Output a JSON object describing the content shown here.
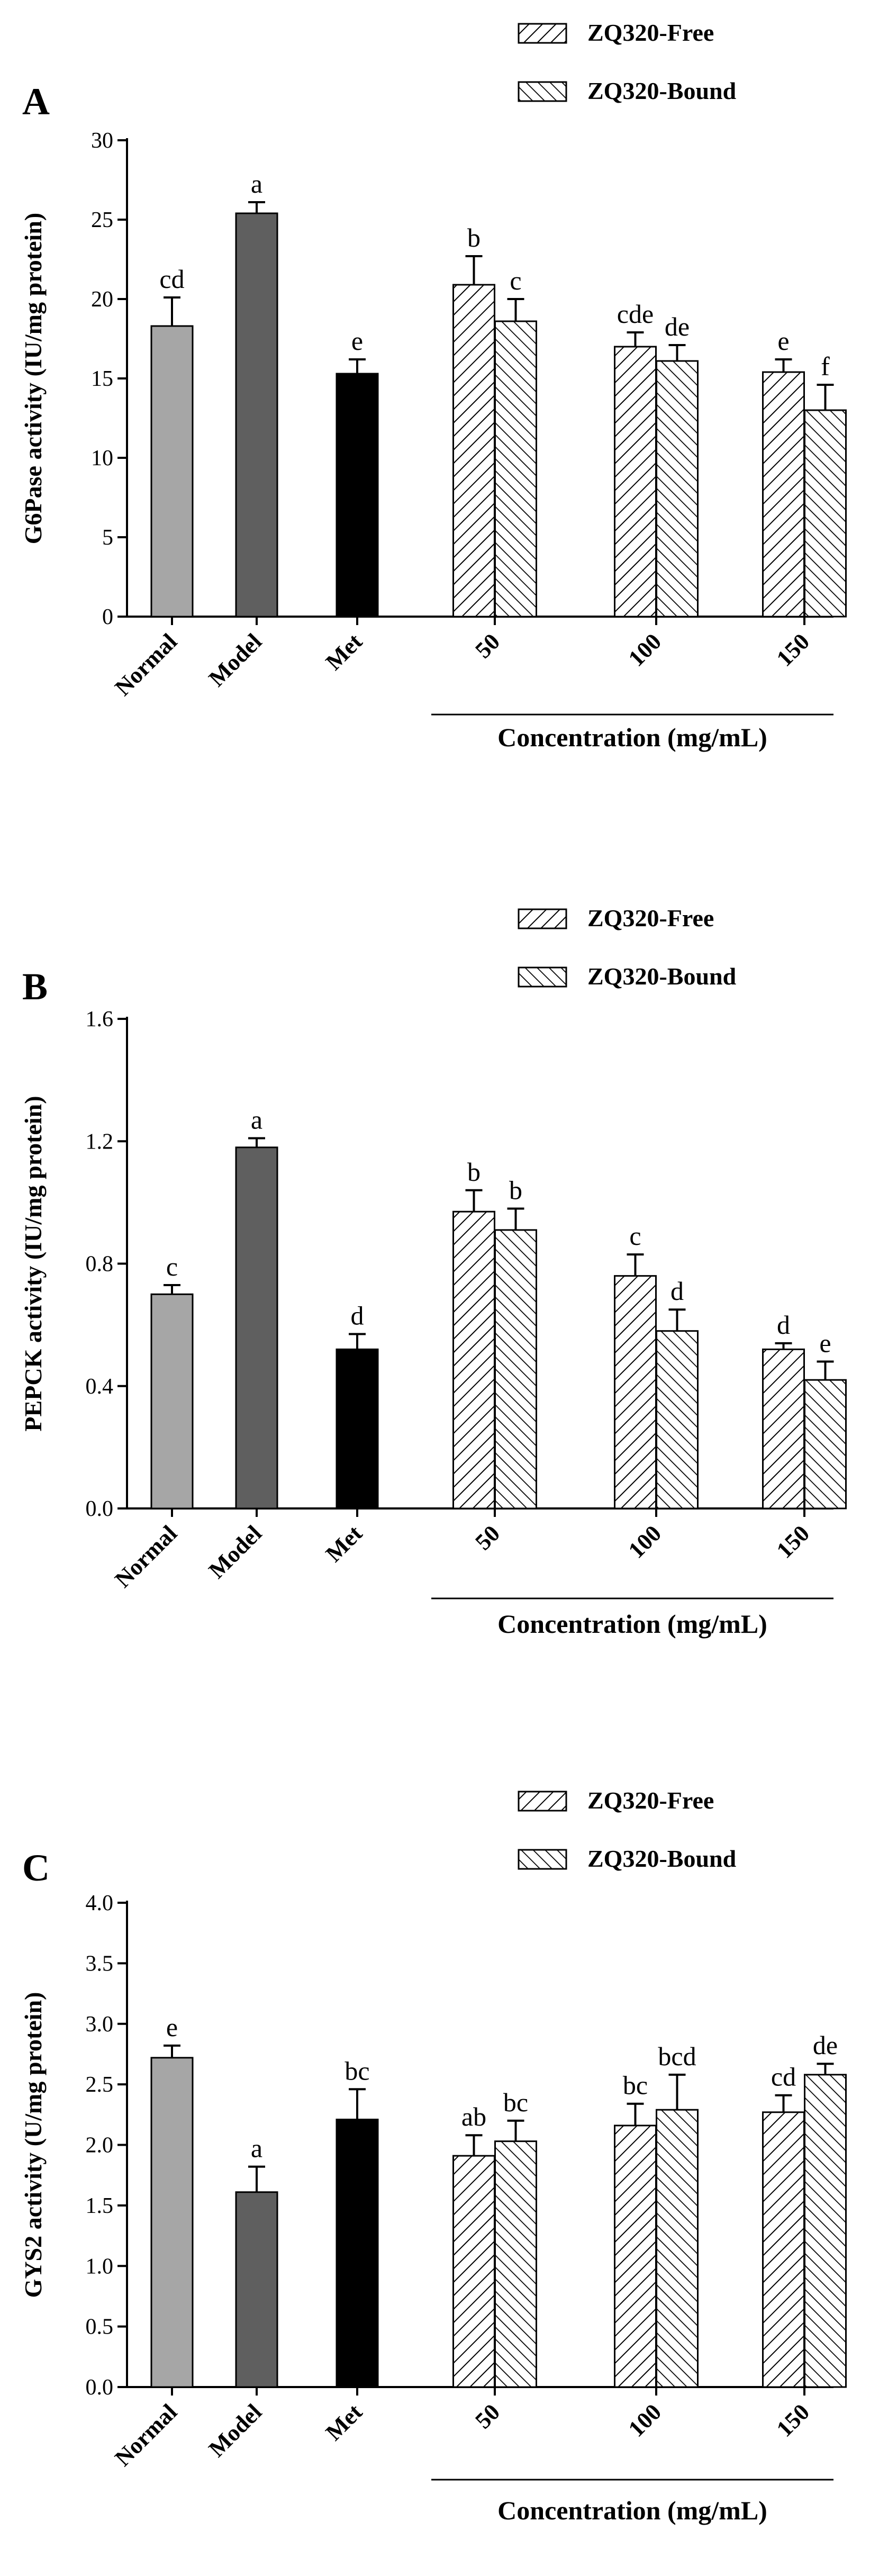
{
  "figure": {
    "legend": {
      "free_label": "ZQ320-Free",
      "bound_label": "ZQ320-Bound"
    }
  },
  "chart_data": [
    {
      "type": "bar",
      "panel_label": "A",
      "ylabel": "G6Pase activity (IU/mg protein)",
      "xlabel": "Concentration (mg/mL)",
      "ylim": [
        0,
        30
      ],
      "yticks": [
        0,
        5,
        10,
        15,
        20,
        25,
        30
      ],
      "ytick_labels": [
        "0",
        "5",
        "10",
        "15",
        "20",
        "25",
        "30"
      ],
      "controls": [
        {
          "category": "Normal",
          "value": 18.3,
          "error": 1.8,
          "letter": "cd",
          "color": "#a6a6a6"
        },
        {
          "category": "Model",
          "value": 25.4,
          "error": 0.7,
          "letter": "a",
          "color": "#5f5f5f"
        },
        {
          "category": "Met",
          "value": 15.3,
          "error": 0.9,
          "letter": "e",
          "color": "#000000"
        }
      ],
      "groups": [
        {
          "category": "50",
          "free": {
            "value": 20.9,
            "error": 1.8,
            "letter": "b"
          },
          "bound": {
            "value": 18.6,
            "error": 1.4,
            "letter": "c"
          }
        },
        {
          "category": "100",
          "free": {
            "value": 17.0,
            "error": 0.9,
            "letter": "cde"
          },
          "bound": {
            "value": 16.1,
            "error": 1.0,
            "letter": "de"
          }
        },
        {
          "category": "150",
          "free": {
            "value": 15.4,
            "error": 0.8,
            "letter": "e"
          },
          "bound": {
            "value": 13.0,
            "error": 1.6,
            "letter": "f"
          }
        }
      ]
    },
    {
      "type": "bar",
      "panel_label": "B",
      "ylabel": "PEPCK activity (IU/mg protein)",
      "xlabel": "Concentration (mg/mL)",
      "ylim": [
        0,
        1.6
      ],
      "yticks": [
        0,
        0.4,
        0.8,
        1.2,
        1.6
      ],
      "ytick_labels": [
        "0.0",
        "0.4",
        "0.8",
        "1.2",
        "1.6"
      ],
      "controls": [
        {
          "category": "Normal",
          "value": 0.7,
          "error": 0.03,
          "letter": "c",
          "color": "#a6a6a6"
        },
        {
          "category": "Model",
          "value": 1.18,
          "error": 0.03,
          "letter": "a",
          "color": "#5f5f5f"
        },
        {
          "category": "Met",
          "value": 0.52,
          "error": 0.05,
          "letter": "d",
          "color": "#000000"
        }
      ],
      "groups": [
        {
          "category": "50",
          "free": {
            "value": 0.97,
            "error": 0.07,
            "letter": "b"
          },
          "bound": {
            "value": 0.91,
            "error": 0.07,
            "letter": "b"
          }
        },
        {
          "category": "100",
          "free": {
            "value": 0.76,
            "error": 0.07,
            "letter": "c"
          },
          "bound": {
            "value": 0.58,
            "error": 0.07,
            "letter": "d"
          }
        },
        {
          "category": "150",
          "free": {
            "value": 0.52,
            "error": 0.02,
            "letter": "d"
          },
          "bound": {
            "value": 0.42,
            "error": 0.06,
            "letter": "e"
          }
        }
      ]
    },
    {
      "type": "bar",
      "panel_label": "C",
      "ylabel": "GYS2 activity (U/mg protein)",
      "xlabel": "Concentration (mg/mL)",
      "ylim": [
        0,
        4
      ],
      "yticks": [
        0,
        0.5,
        1,
        1.5,
        2,
        2.5,
        3,
        3.5,
        4
      ],
      "ytick_labels": [
        "0.0",
        "0.5",
        "1.0",
        "1.5",
        "2.0",
        "2.5",
        "3.0",
        "3.5",
        "4.0"
      ],
      "controls": [
        {
          "category": "Normal",
          "value": 2.72,
          "error": 0.1,
          "letter": "e",
          "color": "#a6a6a6"
        },
        {
          "category": "Model",
          "value": 1.61,
          "error": 0.21,
          "letter": "a",
          "color": "#5f5f5f"
        },
        {
          "category": "Met",
          "value": 2.21,
          "error": 0.25,
          "letter": "bc",
          "color": "#000000"
        }
      ],
      "groups": [
        {
          "category": "50",
          "free": {
            "value": 1.91,
            "error": 0.17,
            "letter": "ab"
          },
          "bound": {
            "value": 2.03,
            "error": 0.17,
            "letter": "bc"
          }
        },
        {
          "category": "100",
          "free": {
            "value": 2.16,
            "error": 0.18,
            "letter": "bc"
          },
          "bound": {
            "value": 2.29,
            "error": 0.29,
            "letter": "bcd"
          }
        },
        {
          "category": "150",
          "free": {
            "value": 2.27,
            "error": 0.14,
            "letter": "cd"
          },
          "bound": {
            "value": 2.58,
            "error": 0.09,
            "letter": "de"
          }
        }
      ]
    }
  ]
}
